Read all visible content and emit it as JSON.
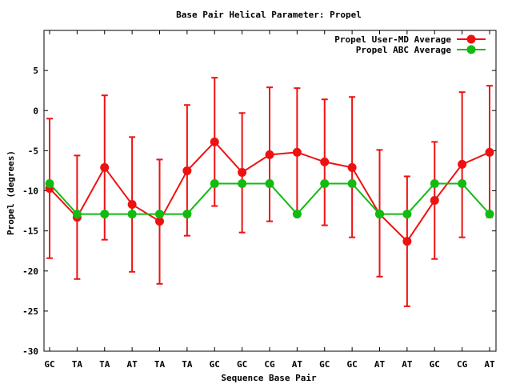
{
  "chart_data": {
    "type": "line",
    "title": "Base Pair Helical Parameter: Propel",
    "xlabel": "Sequence Base Pair",
    "ylabel": "Propel (degrees)",
    "ylim": [
      -30,
      10
    ],
    "yticks": [
      5,
      0,
      -5,
      -10,
      -15,
      -20,
      -25,
      -30
    ],
    "categories": [
      "GC",
      "TA",
      "TA",
      "AT",
      "TA",
      "TA",
      "GC",
      "GC",
      "CG",
      "AT",
      "GC",
      "GC",
      "AT",
      "AT",
      "GC",
      "CG",
      "AT"
    ],
    "grid": false,
    "legend": "top-right",
    "series": [
      {
        "name": "Propel User-MD Average",
        "color": "#ee1111",
        "values": [
          -9.7,
          -13.3,
          -7.1,
          -11.7,
          -13.8,
          -7.5,
          -3.9,
          -7.7,
          -5.5,
          -5.2,
          -6.4,
          -7.1,
          -12.9,
          -16.3,
          -11.2,
          -6.7,
          -5.2
        ],
        "err_low": [
          -18.4,
          -21.0,
          -16.1,
          -20.1,
          -21.6,
          -15.6,
          -11.9,
          -15.2,
          -13.8,
          -13.0,
          -14.3,
          -15.8,
          -20.7,
          -24.4,
          -18.5,
          -15.8,
          -13.3
        ],
        "err_high": [
          -1.0,
          -5.6,
          1.9,
          -3.3,
          -6.1,
          0.7,
          4.1,
          -0.3,
          2.9,
          2.8,
          1.4,
          1.7,
          -4.9,
          -8.2,
          -3.9,
          2.3,
          3.1
        ]
      },
      {
        "name": "Propel ABC Average",
        "color": "#11bb11",
        "values": [
          -9.1,
          -12.9,
          -12.9,
          -12.9,
          -12.9,
          -12.9,
          -9.1,
          -9.1,
          -9.1,
          -12.9,
          -9.1,
          -9.1,
          -12.9,
          -12.9,
          -9.1,
          -9.1,
          -12.9
        ]
      }
    ]
  }
}
